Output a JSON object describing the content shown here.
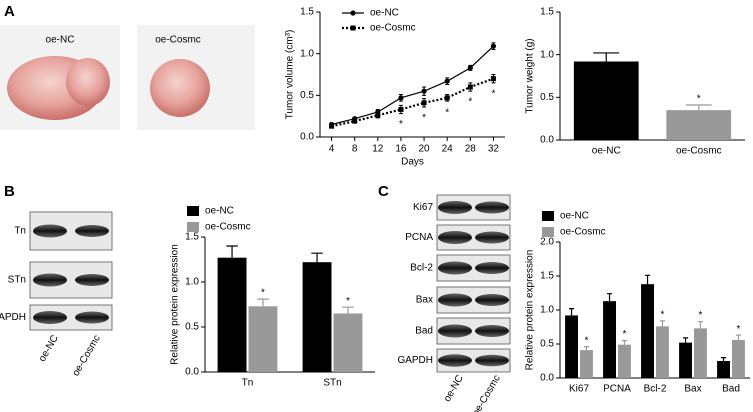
{
  "panel_labels": [
    "A",
    "B",
    "C"
  ],
  "photos": [
    "oe-NC",
    "oe-Cosmc"
  ],
  "blot_b": {
    "rows": [
      "Tn",
      "STn",
      "GAPDH"
    ],
    "lanes": [
      "oe-NC",
      "oe-Cosmc"
    ]
  },
  "blot_c": {
    "rows": [
      "Ki67",
      "PCNA",
      "Bcl-2",
      "Bax",
      "Bad",
      "GAPDH"
    ],
    "lanes": [
      "oe-NC",
      "oe-Cosmc"
    ]
  },
  "chart_data": [
    {
      "type": "line",
      "xlabel": "Days",
      "ylabel": "Tumor volume (cm³)",
      "x": [
        4,
        8,
        12,
        16,
        20,
        24,
        28,
        32
      ],
      "xlim": [
        2,
        34
      ],
      "xticks": [
        4,
        8,
        12,
        16,
        20,
        24,
        28,
        32
      ],
      "ylim": [
        0,
        1.5
      ],
      "yticks": [
        {
          "value": 0,
          "label": "0.0"
        },
        0.5,
        {
          "value": 1,
          "label": "1.0"
        },
        1.5
      ],
      "legend": "upper left",
      "series": [
        {
          "name": "oe-NC",
          "color": "#000000",
          "linestyle": "solid",
          "marker": "circle",
          "values": [
            0.15,
            0.22,
            0.3,
            0.47,
            0.55,
            0.67,
            0.83,
            1.09
          ],
          "errors": [
            0.02,
            0.02,
            0.03,
            0.04,
            0.05,
            0.04,
            0.03,
            0.04
          ]
        },
        {
          "name": "oe-Cosmc",
          "color": "#000000",
          "linestyle": "dotted",
          "marker": "square",
          "values": [
            0.13,
            0.19,
            0.26,
            0.33,
            0.41,
            0.47,
            0.6,
            0.7
          ],
          "errors": [
            0.02,
            0.02,
            0.03,
            0.05,
            0.05,
            0.04,
            0.05,
            0.05
          ],
          "significance": [
            null,
            null,
            null,
            "*",
            "*",
            "*",
            "*",
            "*"
          ]
        }
      ]
    },
    {
      "type": "bar",
      "ylabel": "Tumor weight (g)",
      "categories": [
        "oe-NC",
        "oe-Cosmc"
      ],
      "values": [
        0.92,
        0.35
      ],
      "errors": [
        0.1,
        0.06
      ],
      "colors": [
        "#000000",
        "#999999"
      ],
      "significance": [
        null,
        "*"
      ],
      "ylim": [
        0,
        1.5
      ],
      "yticks": [
        {
          "value": 0,
          "label": "0.0"
        },
        0.5,
        {
          "value": 1,
          "label": "1.0"
        },
        1.5
      ]
    },
    {
      "type": "bar",
      "ylabel": "Relative protein expression",
      "categories": [
        "Tn",
        "STn"
      ],
      "legend": "upper left",
      "ylim": [
        0,
        1.5
      ],
      "yticks": [
        {
          "value": 0,
          "label": "0.0"
        },
        0.5,
        {
          "value": 1,
          "label": "1.0"
        },
        1.5
      ],
      "series": [
        {
          "name": "oe-NC",
          "color": "#000000",
          "values": [
            1.27,
            1.22
          ],
          "errors": [
            0.13,
            0.1
          ]
        },
        {
          "name": "oe-Cosmc",
          "color": "#999999",
          "values": [
            0.73,
            0.65
          ],
          "errors": [
            0.08,
            0.07
          ],
          "significance": [
            "*",
            "*"
          ]
        }
      ]
    },
    {
      "type": "bar",
      "ylabel": "Relative protein expression",
      "categories": [
        "Ki67",
        "PCNA",
        "Bcl-2",
        "Bax",
        "Bad"
      ],
      "legend": "upper left",
      "ylim": [
        0,
        2
      ],
      "yticks": [
        {
          "value": 0,
          "label": "0.0"
        },
        0.5,
        {
          "value": 1,
          "label": "1.0"
        },
        1.5,
        {
          "value": 2,
          "label": "2.0"
        }
      ],
      "series": [
        {
          "name": "oe-NC",
          "color": "#000000",
          "values": [
            0.92,
            1.13,
            1.38,
            0.52,
            0.25
          ],
          "errors": [
            0.1,
            0.11,
            0.13,
            0.07,
            0.05
          ]
        },
        {
          "name": "oe-Cosmc",
          "color": "#999999",
          "values": [
            0.41,
            0.49,
            0.76,
            0.73,
            0.56
          ],
          "errors": [
            0.05,
            0.06,
            0.08,
            0.1,
            0.07
          ],
          "significance": [
            "*",
            "*",
            "*",
            "*",
            "*"
          ]
        }
      ]
    }
  ]
}
